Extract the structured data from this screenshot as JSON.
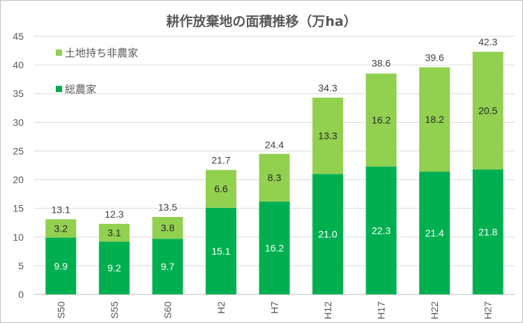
{
  "chart_data": {
    "type": "bar",
    "stacked": true,
    "title": "耕作放棄地の面積推移（万ha）",
    "categories": [
      "S50",
      "S55",
      "S60",
      "H2",
      "H7",
      "H12",
      "H17",
      "H22",
      "H27"
    ],
    "series": [
      {
        "name": "総農家",
        "color": "#00b050",
        "values": [
          9.9,
          9.2,
          9.7,
          15.1,
          16.2,
          21.0,
          22.3,
          21.4,
          21.8
        ]
      },
      {
        "name": "土地持ち非農家",
        "color": "#92d050",
        "values": [
          3.2,
          3.1,
          3.8,
          6.6,
          8.3,
          13.3,
          16.2,
          18.2,
          20.5
        ]
      }
    ],
    "totals": [
      13.1,
      12.3,
      13.5,
      21.7,
      24.4,
      34.3,
      38.6,
      39.6,
      42.3
    ],
    "ylim": [
      0,
      45
    ],
    "yticks": [
      0,
      5,
      10,
      15,
      20,
      25,
      30,
      35,
      40,
      45
    ],
    "grid": true,
    "legend_position": "top-left",
    "xlabel": "",
    "ylabel": ""
  }
}
